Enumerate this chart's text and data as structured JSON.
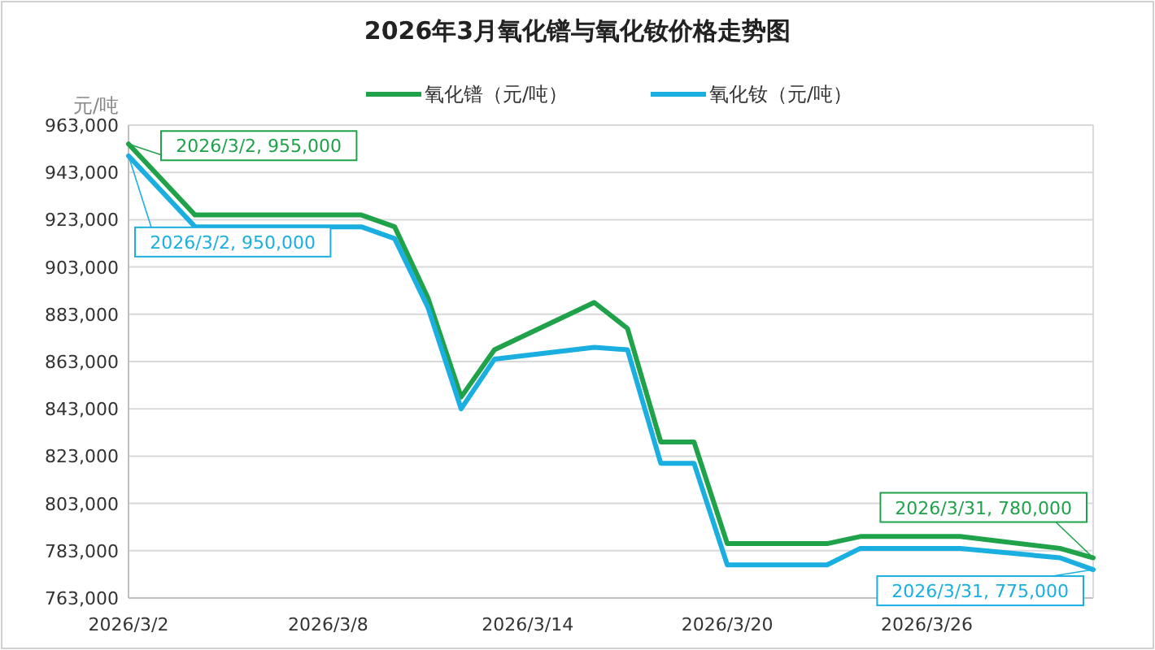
{
  "chart_data": {
    "type": "line",
    "title": "2026年3月氧化镨与氧化钕价格走势图",
    "ylabel": "元/吨",
    "xlim": [
      "2026-03-02",
      "2026-03-31"
    ],
    "xticks": [
      {
        "value": "2026-03-02",
        "label": "2026/3/2"
      },
      {
        "value": "2026-03-08",
        "label": "2026/3/8"
      },
      {
        "value": "2026-03-14",
        "label": "2026/3/14"
      },
      {
        "value": "2026-03-20",
        "label": "2026/3/20"
      },
      {
        "value": "2026-03-26",
        "label": "2026/3/26"
      }
    ],
    "ylim": [
      763000,
      963000
    ],
    "yticks": [
      {
        "value": 763000,
        "label": "763,000"
      },
      {
        "value": 783000,
        "label": "783,000"
      },
      {
        "value": 803000,
        "label": "803,000"
      },
      {
        "value": 823000,
        "label": "823,000"
      },
      {
        "value": 843000,
        "label": "843,000"
      },
      {
        "value": 863000,
        "label": "863,000"
      },
      {
        "value": 883000,
        "label": "883,000"
      },
      {
        "value": 903000,
        "label": "903,000"
      },
      {
        "value": 923000,
        "label": "923,000"
      },
      {
        "value": 943000,
        "label": "943,000"
      },
      {
        "value": 963000,
        "label": "963,000"
      }
    ],
    "grid": "y",
    "legend": "top",
    "marker": "none",
    "line_style": "solid",
    "x": [
      "2026-03-02",
      "2026-03-04",
      "2026-03-09",
      "2026-03-10",
      "2026-03-11",
      "2026-03-12",
      "2026-03-13",
      "2026-03-16",
      "2026-03-17",
      "2026-03-18",
      "2026-03-19",
      "2026-03-20",
      "2026-03-23",
      "2026-03-24",
      "2026-03-27",
      "2026-03-30",
      "2026-03-31"
    ],
    "series": [
      {
        "name": "氧化镨（元/吨）",
        "color": "#1fa24a",
        "values": [
          955000,
          925000,
          925000,
          920000,
          890000,
          848000,
          868000,
          888000,
          877000,
          829000,
          829000,
          786000,
          786000,
          789000,
          789000,
          784000,
          780000
        ]
      },
      {
        "name": "氧化钕（元/吨）",
        "color": "#1aafe0",
        "values": [
          950000,
          920000,
          920000,
          915000,
          886000,
          843000,
          864000,
          869000,
          868000,
          820000,
          820000,
          777000,
          777000,
          784000,
          784000,
          780000,
          775000
        ]
      }
    ],
    "annotations": [
      {
        "text": "2026/3/2, 955,000",
        "x": "2026-03-02",
        "y": 955000
      },
      {
        "text": "2026/3/2, 950,000",
        "x": "2026-03-02",
        "y": 950000
      },
      {
        "text": "2026/3/31, 780,000",
        "x": "2026-03-31",
        "y": 780000
      },
      {
        "text": "2026/3/31, 775,000",
        "x": "2026-03-31",
        "y": 775000
      }
    ]
  }
}
